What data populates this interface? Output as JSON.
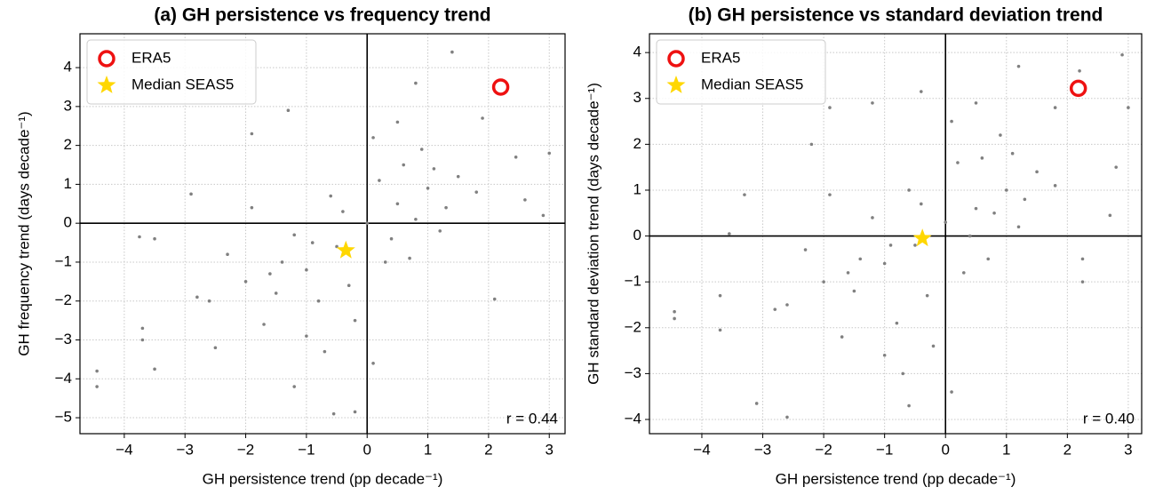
{
  "chart_data": [
    {
      "type": "scatter",
      "title": "(a) GH persistence vs frequency trend",
      "x_label": "GH persistence trend (pp decade⁻¹)",
      "y_label": "GH frequency trend (days decade⁻¹)",
      "annotation": "r = 0.44",
      "xlim": [
        -4.73,
        3.26
      ],
      "ylim": [
        -5.41,
        4.87
      ],
      "xticks": [
        {
          "value": -4,
          "label": "−4"
        },
        {
          "value": -3,
          "label": "−3"
        },
        {
          "value": -2,
          "label": "−2"
        },
        {
          "value": -1,
          "label": "−1"
        },
        0,
        1,
        2,
        3
      ],
      "yticks": [
        {
          "value": -5,
          "label": "−5"
        },
        {
          "value": -4,
          "label": "−4"
        },
        {
          "value": -3,
          "label": "−3"
        },
        {
          "value": -2,
          "label": "−2"
        },
        {
          "value": -1,
          "label": "−1"
        },
        0,
        1,
        2,
        3,
        4
      ],
      "grid": true,
      "legend": "upper left",
      "series": [
        {
          "color": "#808080",
          "marker": "dot",
          "x": [
            -4.45,
            -4.45,
            -3.7,
            -3.7,
            -3.5,
            -3.75,
            -3.5,
            -2.9,
            -1.9,
            -0.55,
            -0.2,
            1.4,
            0.8,
            2.1,
            3.0,
            2.6,
            2.9,
            2.45,
            1.9,
            -1.3,
            0.1,
            -1.2,
            -2.5,
            -1.5,
            -1,
            -0.5,
            0,
            0.5,
            1,
            -0.8,
            0.3,
            -1.2,
            0.6,
            -2,
            -0.2,
            1.2,
            -1.7,
            0.8,
            -0.6,
            -2.3,
            0.2,
            1.5,
            -1,
            -0.3,
            0.4,
            -1.4,
            0.9,
            -2.6,
            1.8,
            -0.7,
            0.1,
            -1.9,
            1.3,
            -0.9,
            0.7,
            -1.6,
            0.5,
            -0.4,
            1.1,
            -2.8
          ],
          "y": [
            -3.8,
            -4.2,
            -3.0,
            -2.7,
            -3.75,
            -0.35,
            -0.4,
            0.75,
            2.3,
            -4.9,
            -4.85,
            4.4,
            3.6,
            -1.95,
            1.8,
            0.6,
            0.2,
            1.7,
            2.7,
            2.9,
            -3.6,
            -4.2,
            -3.2,
            -1.8,
            -1.2,
            -0.6,
            0,
            0.5,
            0.9,
            -2.0,
            -1.0,
            -0.3,
            1.5,
            -1.5,
            -2.5,
            -0.2,
            -2.6,
            0.1,
            0.7,
            -0.8,
            1.1,
            1.2,
            -2.9,
            -1.6,
            -0.4,
            -1.0,
            1.9,
            -2.0,
            0.8,
            -3.3,
            2.2,
            0.4,
            0.4,
            -0.5,
            -0.9,
            -1.3,
            2.6,
            0.3,
            1.4,
            -1.9
          ]
        },
        {
          "name": "ERA5",
          "color": "#ee1111",
          "marker": "circle",
          "x": [
            2.2
          ],
          "y": [
            3.5
          ]
        },
        {
          "name": "Median SEAS5",
          "color": "#ffd700",
          "marker": "star",
          "x": [
            -0.35
          ],
          "y": [
            -0.7
          ]
        }
      ]
    },
    {
      "type": "scatter",
      "title": "(b) GH persistence vs standard deviation trend",
      "x_label": "GH persistence trend (pp decade⁻¹)",
      "y_label": "GH standard deviation trend (days decade⁻¹)",
      "annotation": "r = 0.40",
      "xlim": [
        -4.86,
        3.22
      ],
      "ylim": [
        -4.31,
        4.41
      ],
      "xticks": [
        {
          "value": -4,
          "label": "−4"
        },
        {
          "value": -3,
          "label": "−3"
        },
        {
          "value": -2,
          "label": "−2"
        },
        {
          "value": -1,
          "label": "−1"
        },
        0,
        1,
        2,
        3
      ],
      "yticks": [
        {
          "value": -4,
          "label": "−4"
        },
        {
          "value": -3,
          "label": "−3"
        },
        {
          "value": -2,
          "label": "−2"
        },
        {
          "value": -1,
          "label": "−1"
        },
        0,
        1,
        2,
        3,
        4
      ],
      "grid": true,
      "legend": "upper left",
      "series": [
        {
          "color": "#808080",
          "marker": "dot",
          "x": [
            -4.45,
            -4.45,
            -3.7,
            -3.7,
            -3.55,
            -3.3,
            -3.1,
            -2.6,
            -1.9,
            -1.2,
            -0.4,
            1.2,
            2.9,
            3.0,
            2.8,
            2.7,
            2.25,
            2.25,
            2.2,
            0.1,
            -0.6,
            -2.2,
            1.8,
            -1.5,
            -1,
            -0.5,
            0,
            0.5,
            1,
            -0.8,
            0.3,
            -1.2,
            0.6,
            -2,
            -0.2,
            1.2,
            -1.7,
            0.8,
            -0.6,
            -2.3,
            0.2,
            1.5,
            -1,
            -0.3,
            0.4,
            -1.4,
            0.9,
            -2.6,
            1.8,
            -0.7,
            0.1,
            -1.9,
            1.3,
            -0.9,
            0.7,
            -1.6,
            0.5,
            -0.4,
            1.1,
            -2.8
          ],
          "y": [
            -1.65,
            -1.8,
            -2.05,
            -1.3,
            0.05,
            0.9,
            -3.65,
            -3.95,
            2.8,
            2.9,
            3.15,
            3.7,
            3.95,
            2.8,
            1.5,
            0.45,
            -0.5,
            -1.0,
            3.6,
            -3.4,
            -3.7,
            2.0,
            2.8,
            -1.2,
            -0.6,
            -0.2,
            0.3,
            0.6,
            1.0,
            -1.9,
            -0.8,
            0.4,
            1.7,
            -1.0,
            -2.4,
            0.2,
            -2.2,
            0.5,
            1.0,
            -0.3,
            1.6,
            1.4,
            -2.6,
            -1.3,
            0.0,
            -0.5,
            2.2,
            -1.5,
            1.1,
            -3.0,
            2.5,
            0.9,
            0.8,
            -0.2,
            -0.5,
            -0.8,
            2.9,
            0.7,
            1.8,
            -1.6
          ]
        },
        {
          "name": "ERA5",
          "color": "#ee1111",
          "marker": "circle",
          "x": [
            2.18
          ],
          "y": [
            3.22
          ]
        },
        {
          "name": "Median SEAS5",
          "color": "#ffd700",
          "marker": "star",
          "x": [
            -0.38
          ],
          "y": [
            -0.05
          ]
        }
      ]
    }
  ]
}
